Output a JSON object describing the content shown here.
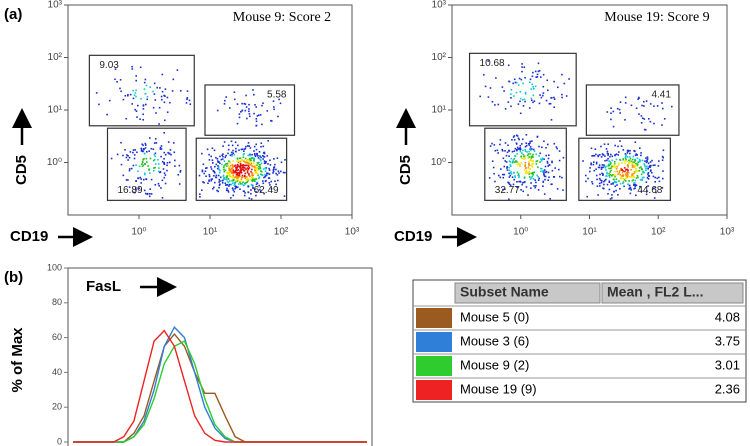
{
  "chart_data": [
    {
      "type": "flow",
      "panel": "(a)",
      "title": "Mouse 9: Score 2",
      "xlabel": "CD19",
      "ylabel": "CD5",
      "log_scale": true,
      "xlim": [
        0.1,
        1000
      ],
      "ylim": [
        0.1,
        1000
      ],
      "xticks": [
        {
          "value": 1,
          "label": "10⁰"
        },
        {
          "value": 10,
          "label": "10¹"
        },
        {
          "value": 100,
          "label": "10²"
        },
        {
          "value": 1000,
          "label": "10³"
        }
      ],
      "yticks": [
        {
          "value": 1,
          "label": "10⁰"
        },
        {
          "value": 10,
          "label": "10¹"
        },
        {
          "value": 100,
          "label": "10²"
        },
        {
          "value": 1000,
          "label": "10³"
        }
      ],
      "gates": [
        {
          "percent": 9.03,
          "xrange": [
            0.2,
            6
          ],
          "yrange": [
            5,
            110
          ]
        },
        {
          "percent": 5.58,
          "xrange": [
            8.5,
            155
          ],
          "yrange": [
            3.3,
            30
          ]
        },
        {
          "percent": 16.89,
          "xrange": [
            0.36,
            4.6
          ],
          "yrange": [
            0.19,
            4.5
          ]
        },
        {
          "percent": 62.49,
          "xrange": [
            6.4,
            120
          ],
          "yrange": [
            0.19,
            2.9
          ]
        }
      ]
    },
    {
      "type": "flow",
      "title": "Mouse 19: Score 9",
      "xlabel": "CD19",
      "ylabel": "CD5",
      "log_scale": true,
      "xlim": [
        0.1,
        1000
      ],
      "ylim": [
        0.1,
        1000
      ],
      "xticks": [
        {
          "value": 1,
          "label": "10⁰"
        },
        {
          "value": 10,
          "label": "10¹"
        },
        {
          "value": 100,
          "label": "10²"
        },
        {
          "value": 1000,
          "label": "10³"
        }
      ],
      "yticks": [
        {
          "value": 1,
          "label": "10⁰"
        },
        {
          "value": 10,
          "label": "10¹"
        },
        {
          "value": 100,
          "label": "10²"
        },
        {
          "value": 1000,
          "label": "10³"
        }
      ],
      "gates": [
        {
          "percent": 10.68,
          "xrange": [
            0.18,
            6.4
          ],
          "yrange": [
            5,
            120
          ]
        },
        {
          "percent": 4.41,
          "xrange": [
            9,
            200
          ],
          "yrange": [
            3.3,
            30
          ]
        },
        {
          "percent": 32.77,
          "xrange": [
            0.3,
            4.6
          ],
          "yrange": [
            0.19,
            4.5
          ]
        },
        {
          "percent": 44.68,
          "xrange": [
            7,
            150
          ],
          "yrange": [
            0.19,
            2.9
          ]
        }
      ]
    },
    {
      "type": "histogram-overlay",
      "panel": "(b)",
      "ylabel": "% of Max",
      "annotation": "FasL",
      "ylim": [
        0,
        100
      ],
      "yticks": [
        0,
        20,
        40,
        60,
        80,
        100
      ],
      "categories": [
        null,
        null,
        null,
        null,
        null,
        null,
        null,
        null,
        null,
        null,
        null,
        null,
        null,
        null,
        null,
        null,
        null,
        null,
        null,
        null,
        null,
        null,
        null,
        null,
        null,
        null,
        null,
        null,
        null,
        null
      ],
      "legend_columns": [
        "Subset Name",
        "Mean , FL2 L..."
      ],
      "series": [
        {
          "name": "Mouse 5 (0)",
          "color": "#9b5a1f",
          "mean": 4.08,
          "values": [
            0,
            0,
            0,
            0,
            0,
            0,
            5,
            15,
            35,
            55,
            62,
            55,
            40,
            28,
            28,
            15,
            3,
            0,
            0,
            0,
            0,
            0,
            0,
            0,
            0,
            0,
            0,
            0,
            0,
            0
          ]
        },
        {
          "name": "Mouse 3 (6)",
          "color": "#2f7fd8",
          "mean": 3.75,
          "values": [
            0,
            0,
            0,
            0,
            0,
            0,
            3,
            12,
            30,
            55,
            66,
            60,
            40,
            20,
            8,
            2,
            0,
            0,
            0,
            0,
            0,
            0,
            0,
            0,
            0,
            0,
            0,
            0,
            0,
            0
          ]
        },
        {
          "name": "Mouse 9 (2)",
          "color": "#2ecc2e",
          "mean": 3.01,
          "values": [
            0,
            0,
            0,
            0,
            0,
            0,
            3,
            10,
            25,
            45,
            55,
            58,
            45,
            25,
            10,
            3,
            0,
            0,
            0,
            0,
            0,
            0,
            0,
            0,
            0,
            0,
            0,
            0,
            0,
            0
          ]
        },
        {
          "name": "Mouse 19 (9)",
          "color": "#ee2222",
          "mean": 2.36,
          "values": [
            0,
            0,
            0,
            0,
            0,
            3,
            12,
            35,
            58,
            64,
            55,
            35,
            15,
            5,
            1,
            0,
            0,
            0,
            0,
            0,
            0,
            0,
            0,
            0,
            0,
            0,
            0,
            0,
            0,
            0
          ]
        }
      ]
    }
  ]
}
